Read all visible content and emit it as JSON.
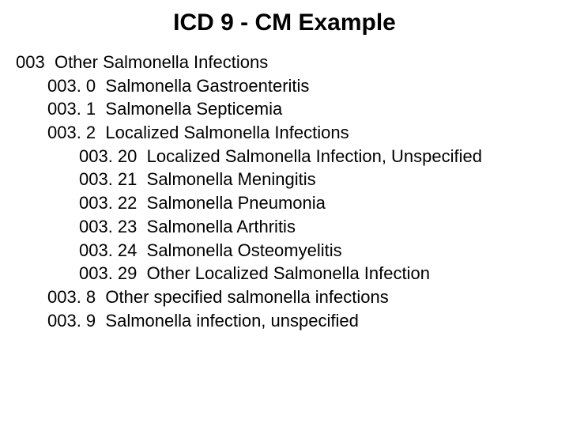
{
  "title": "ICD 9 - CM Example",
  "text_color": "#000000",
  "background_color": "#ffffff",
  "title_fontsize": 30,
  "body_fontsize": 22,
  "entries": [
    {
      "code": "003",
      "label": "Other Salmonella Infections",
      "indent": 0
    },
    {
      "code": "003. 0",
      "label": "Salmonella Gastroenteritis",
      "indent": 1
    },
    {
      "code": "003. 1",
      "label": "Salmonella Septicemia",
      "indent": 1
    },
    {
      "code": "003. 2",
      "label": "Localized Salmonella Infections",
      "indent": 1
    },
    {
      "code": "003. 20",
      "label": "Localized Salmonella Infection, Unspecified",
      "indent": 2
    },
    {
      "code": "003. 21",
      "label": "Salmonella Meningitis",
      "indent": 2
    },
    {
      "code": "003. 22",
      "label": "Salmonella Pneumonia",
      "indent": 2
    },
    {
      "code": "003. 23",
      "label": "Salmonella Arthritis",
      "indent": 2
    },
    {
      "code": "003. 24",
      "label": "Salmonella Osteomyelitis",
      "indent": 2
    },
    {
      "code": "003. 29",
      "label": "Other Localized Salmonella Infection",
      "indent": 2
    },
    {
      "code": "003. 8",
      "label": "Other specified salmonella infections",
      "indent": 1
    },
    {
      "code": "003. 9",
      "label": "Salmonella infection, unspecified",
      "indent": 1
    }
  ]
}
